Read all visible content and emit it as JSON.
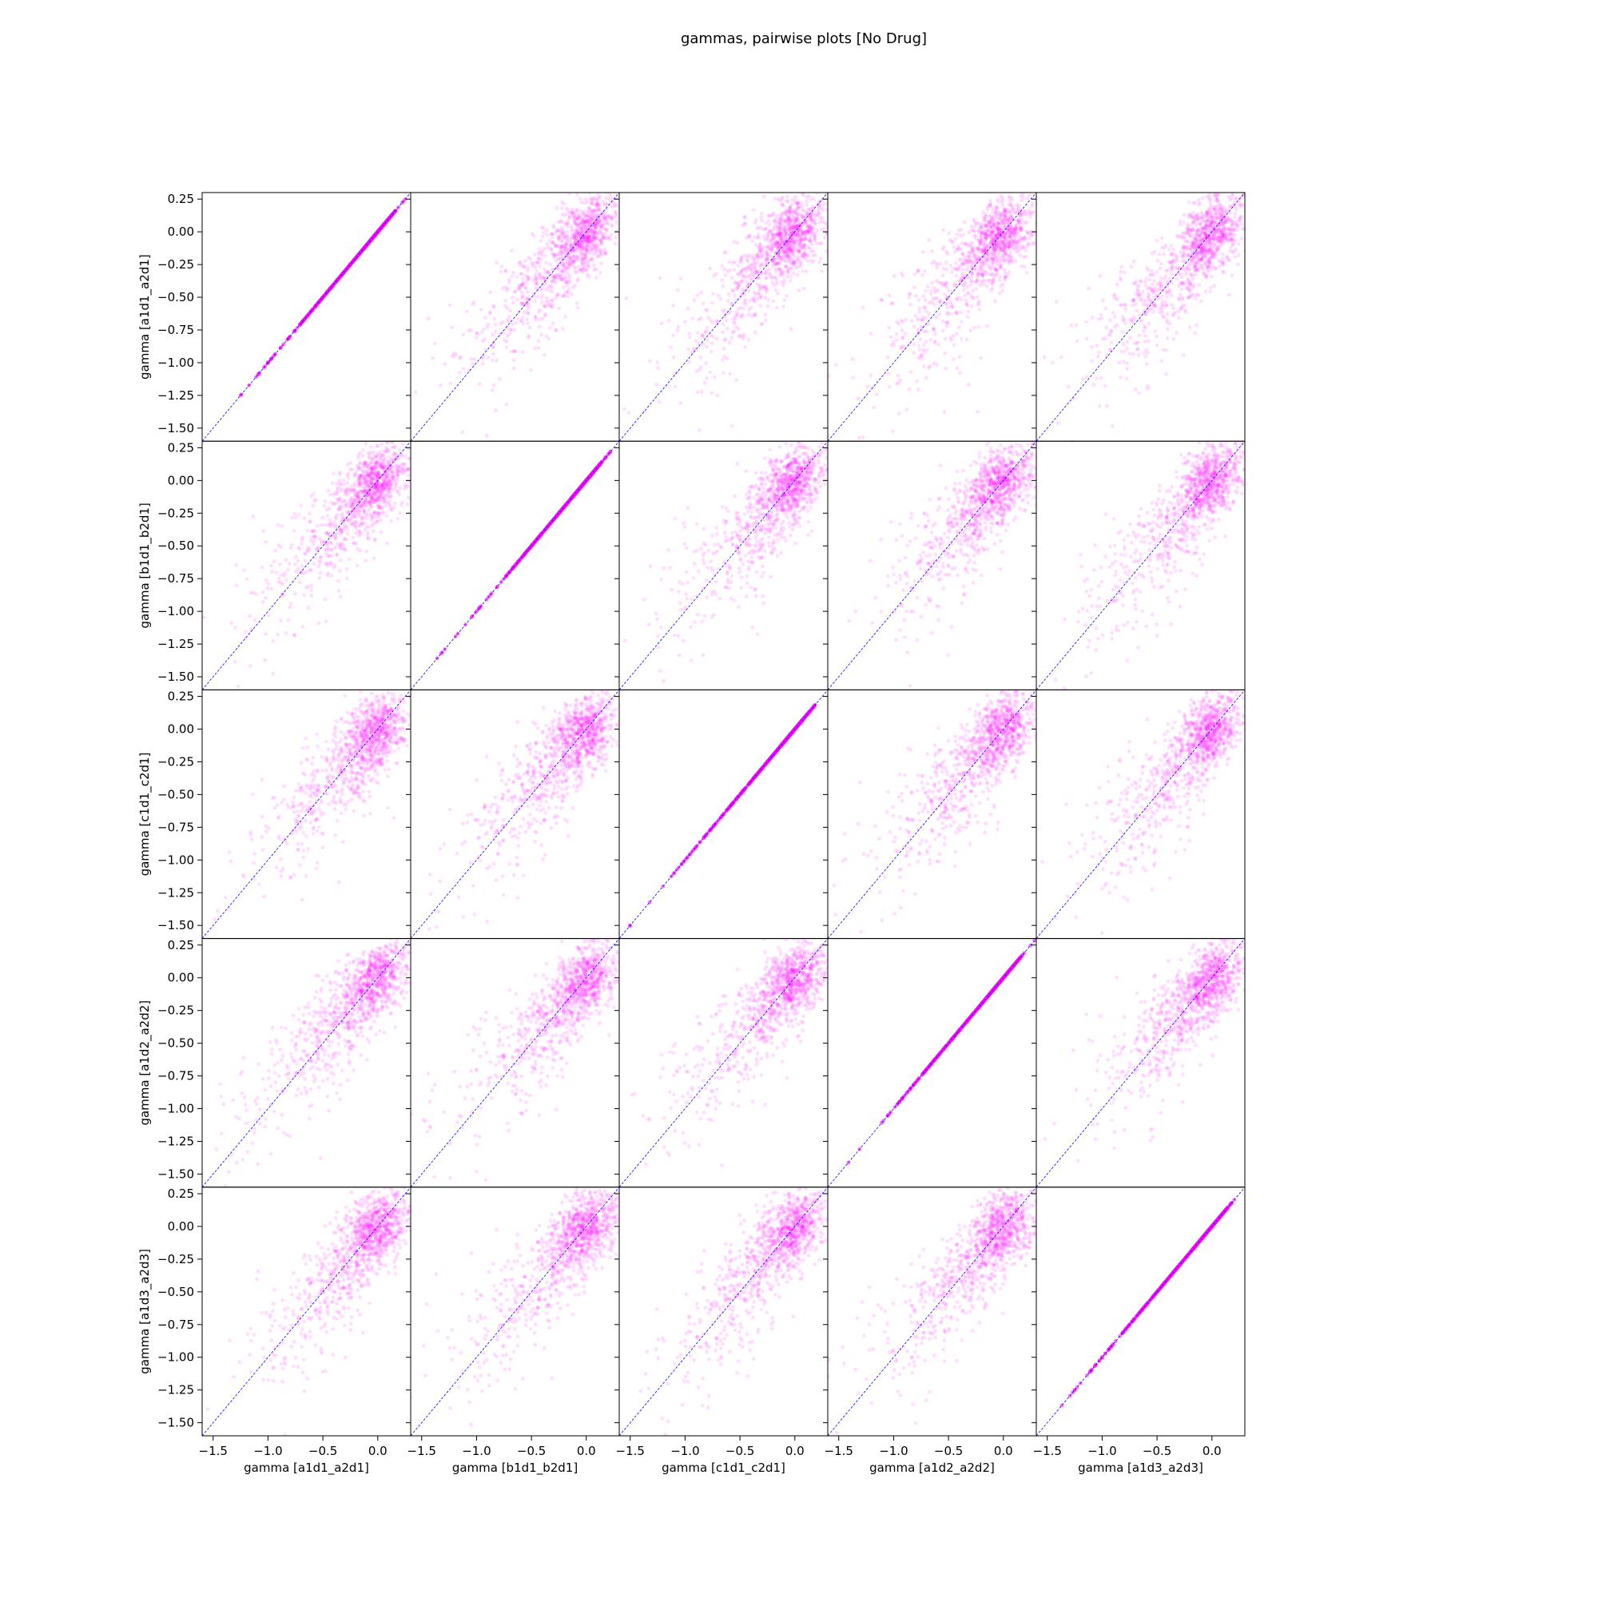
{
  "chart_data": {
    "type": "scatter",
    "subtype": "pairwise-scatter-matrix",
    "title": "gammas, pairwise plots [No Drug]",
    "variables": [
      "a1d1_a2d1",
      "b1d1_b2d1",
      "c1d1_c2d1",
      "a1d2_a2d2",
      "a1d3_a2d3"
    ],
    "xlabels": [
      "gamma [a1d1_a2d1]",
      "gamma [b1d1_b2d1]",
      "gamma [c1d1_c2d1]",
      "gamma [a1d2_a2d2]",
      "gamma [a1d3_a2d3]"
    ],
    "ylabels": [
      "gamma [a1d1_a2d1]",
      "gamma [b1d1_b2d1]",
      "gamma [c1d1_c2d1]",
      "gamma [a1d2_a2d2]",
      "gamma [a1d3_a2d3]"
    ],
    "xlim": [
      -1.6,
      0.3
    ],
    "ylim": [
      -1.6,
      0.3
    ],
    "xticks": [
      -1.5,
      -1.0,
      -0.5,
      0.0
    ],
    "xtick_labels": [
      "−1.5",
      "−1.0",
      "−0.5",
      "0.0"
    ],
    "yticks": [
      0.25,
      0.0,
      -0.25,
      -0.5,
      -0.75,
      -1.0,
      -1.25,
      -1.5
    ],
    "ytick_labels": [
      "0.25",
      "0.00",
      "−0.25",
      "−0.50",
      "−0.75",
      "−1.00",
      "−1.25",
      "−1.50"
    ],
    "reference_line": {
      "slope": 1,
      "intercept": 0,
      "style": "dashed",
      "color": "#0000ff"
    },
    "point_color": "#ff00ff",
    "approx_distribution": {
      "dense_center": [
        0.0,
        0.0
      ],
      "tail_extends_to": -1.6,
      "note_row_col": "row = y variable, column = x variable; diagonal panels are identical variables (points on y = x)"
    },
    "grid": false,
    "legend": "none"
  }
}
